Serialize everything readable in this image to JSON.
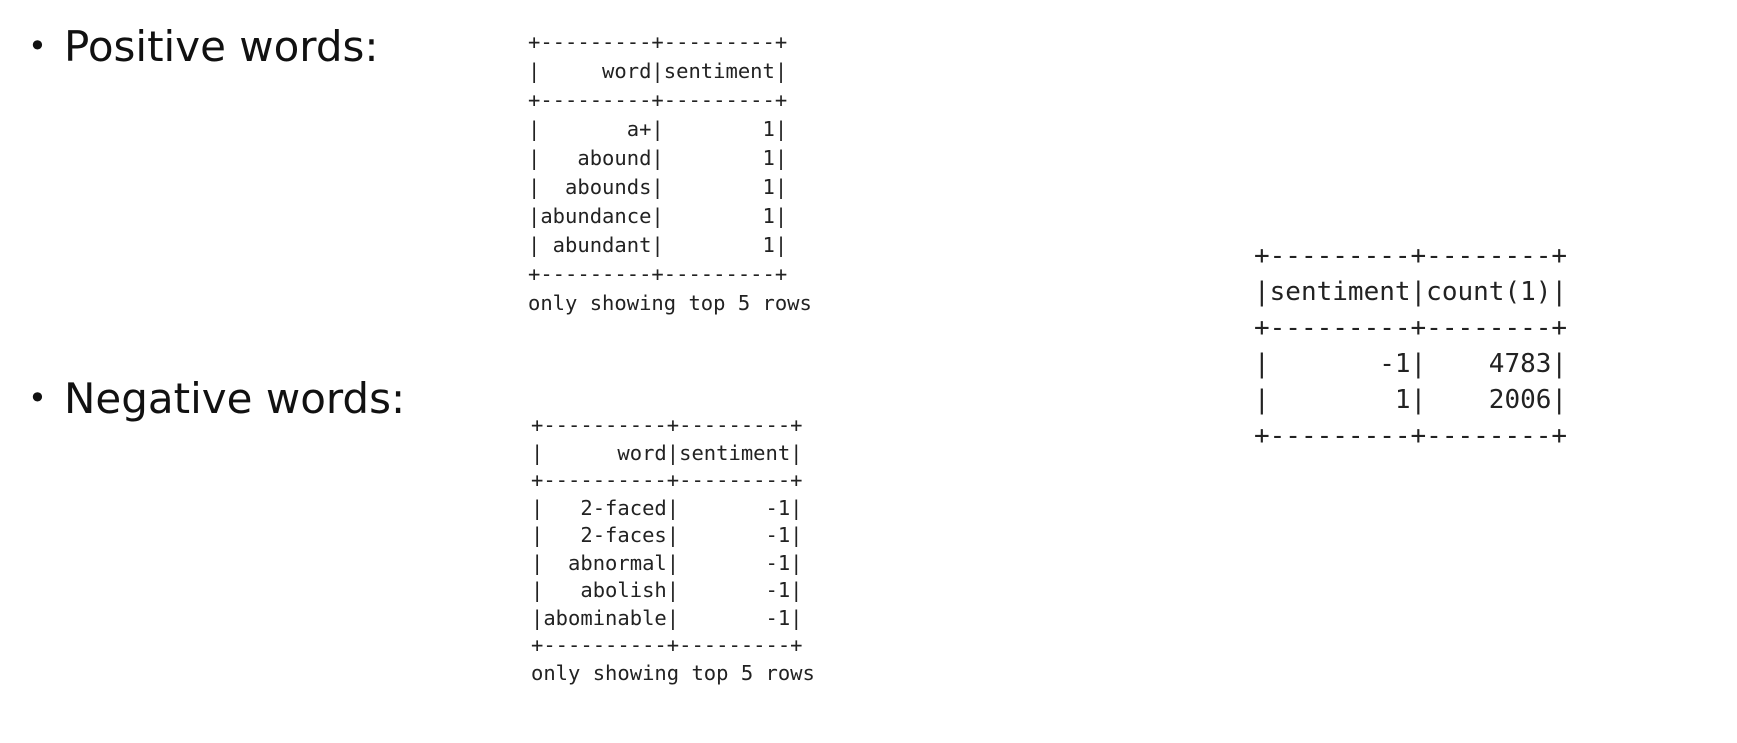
{
  "bullets": {
    "marker": "•",
    "positive_label": "Positive words:",
    "negative_label": "Negative words:"
  },
  "positive_table": {
    "columns": [
      "word",
      "sentiment"
    ],
    "rows": [
      {
        "word": "a+",
        "sentiment": "1"
      },
      {
        "word": "abound",
        "sentiment": "1"
      },
      {
        "word": "abounds",
        "sentiment": "1"
      },
      {
        "word": "abundance",
        "sentiment": "1"
      },
      {
        "word": "abundant",
        "sentiment": "1"
      }
    ],
    "footer": "only showing top 5 rows"
  },
  "negative_table": {
    "columns": [
      "word",
      "sentiment"
    ],
    "rows": [
      {
        "word": "2-faced",
        "sentiment": "-1"
      },
      {
        "word": "2-faces",
        "sentiment": "-1"
      },
      {
        "word": "abnormal",
        "sentiment": "-1"
      },
      {
        "word": "abolish",
        "sentiment": "-1"
      },
      {
        "word": "abominable",
        "sentiment": "-1"
      }
    ],
    "footer": "only showing top 5 rows"
  },
  "count_table": {
    "columns": [
      "sentiment",
      "count(1)"
    ],
    "rows": [
      {
        "sentiment": "-1",
        "count": "4783"
      },
      {
        "sentiment": "1",
        "count": "2006"
      }
    ]
  }
}
